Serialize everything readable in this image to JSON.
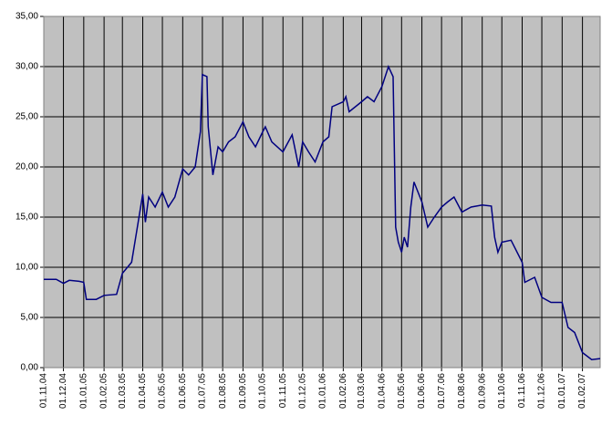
{
  "chart_data": {
    "type": "line",
    "x": [
      "2004-11-01",
      "2004-11-20",
      "2004-12-01",
      "2004-12-10",
      "2004-12-25",
      "2005-01-01",
      "2005-01-05",
      "2005-01-20",
      "2005-02-01",
      "2005-02-20",
      "2005-03-01",
      "2005-03-15",
      "2005-03-25",
      "2005-04-01",
      "2005-04-05",
      "2005-04-10",
      "2005-04-20",
      "2005-05-01",
      "2005-05-10",
      "2005-05-20",
      "2005-06-01",
      "2005-06-10",
      "2005-06-20",
      "2005-06-28",
      "2005-07-01",
      "2005-07-08",
      "2005-07-10",
      "2005-07-17",
      "2005-07-25",
      "2005-08-01",
      "2005-08-10",
      "2005-08-20",
      "2005-09-01",
      "2005-09-10",
      "2005-09-20",
      "2005-10-01",
      "2005-10-05",
      "2005-10-15",
      "2005-11-01",
      "2005-11-15",
      "2005-11-25",
      "2005-12-01",
      "2005-12-10",
      "2005-12-20",
      "2006-01-01",
      "2006-01-10",
      "2006-01-15",
      "2006-02-01",
      "2006-02-05",
      "2006-02-10",
      "2006-03-01",
      "2006-03-10",
      "2006-03-20",
      "2006-04-01",
      "2006-04-11",
      "2006-04-18",
      "2006-04-22",
      "2006-04-26",
      "2006-05-01",
      "2006-05-05",
      "2006-05-10",
      "2006-05-15",
      "2006-05-20",
      "2006-06-01",
      "2006-06-10",
      "2006-06-20",
      "2006-07-01",
      "2006-07-10",
      "2006-07-20",
      "2006-08-01",
      "2006-08-15",
      "2006-09-01",
      "2006-09-15",
      "2006-09-20",
      "2006-09-25",
      "2006-10-01",
      "2006-10-15",
      "2006-11-01",
      "2006-11-05",
      "2006-11-20",
      "2006-12-01",
      "2006-12-15",
      "2007-01-01",
      "2007-01-10",
      "2007-01-20",
      "2007-02-01",
      "2007-02-15",
      "2007-02-28"
    ],
    "series": [
      {
        "color": "#000080",
        "values": [
          8.8,
          8.8,
          8.4,
          8.7,
          8.6,
          8.5,
          6.8,
          6.8,
          7.2,
          7.3,
          9.4,
          10.5,
          14.5,
          17.3,
          14.5,
          17,
          16,
          17.5,
          16,
          17,
          19.8,
          19.2,
          20,
          23.5,
          29.2,
          29,
          24,
          19.2,
          22,
          21.5,
          22.5,
          23,
          24.5,
          23,
          22,
          23.5,
          24,
          22.5,
          21.5,
          23.2,
          20,
          22.5,
          21.5,
          20.5,
          22.5,
          23,
          26,
          26.5,
          27,
          25.5,
          26.5,
          27,
          26.5,
          28,
          30,
          29,
          14,
          12.5,
          11.5,
          13,
          12,
          16,
          18.5,
          16.5,
          14,
          15,
          16,
          16.5,
          17,
          15.5,
          16,
          16.2,
          16.1,
          13,
          11.5,
          12.5,
          12.7,
          10.5,
          8.5,
          9,
          7,
          6.5,
          6.5,
          4,
          3.5,
          1.5,
          0.8,
          0.9
        ]
      }
    ],
    "xlim": [
      "2004-11-01",
      "2007-02-28"
    ],
    "xticks": [
      {
        "value": "2004-11-01",
        "label": "01.11.04"
      },
      {
        "value": "2004-12-01",
        "label": "01.12.04"
      },
      {
        "value": "2005-01-01",
        "label": "01.01.05"
      },
      {
        "value": "2005-02-01",
        "label": "01.02.05"
      },
      {
        "value": "2005-03-01",
        "label": "01.03.05"
      },
      {
        "value": "2005-04-01",
        "label": "01.04.05"
      },
      {
        "value": "2005-05-01",
        "label": "01.05.05"
      },
      {
        "value": "2005-06-01",
        "label": "01.06.05"
      },
      {
        "value": "2005-07-01",
        "label": "01.07.05"
      },
      {
        "value": "2005-08-01",
        "label": "01.08.05"
      },
      {
        "value": "2005-09-01",
        "label": "01.09.05"
      },
      {
        "value": "2005-10-01",
        "label": "01.10.05"
      },
      {
        "value": "2005-11-01",
        "label": "01.11.05"
      },
      {
        "value": "2005-12-01",
        "label": "01.12.05"
      },
      {
        "value": "2006-01-01",
        "label": "01.01.06"
      },
      {
        "value": "2006-02-01",
        "label": "01.02.06"
      },
      {
        "value": "2006-03-01",
        "label": "01.03.06"
      },
      {
        "value": "2006-04-01",
        "label": "01.04.06"
      },
      {
        "value": "2006-05-01",
        "label": "01.05.06"
      },
      {
        "value": "2006-06-01",
        "label": "01.06.06"
      },
      {
        "value": "2006-07-01",
        "label": "01.07.06"
      },
      {
        "value": "2006-08-01",
        "label": "01.08.06"
      },
      {
        "value": "2006-09-01",
        "label": "01.09.06"
      },
      {
        "value": "2006-10-01",
        "label": "01.10.06"
      },
      {
        "value": "2006-11-01",
        "label": "01.11.06"
      },
      {
        "value": "2006-12-01",
        "label": "01.12.06"
      },
      {
        "value": "2007-01-01",
        "label": "01.01.07"
      },
      {
        "value": "2007-02-01",
        "label": "01.02.07"
      }
    ],
    "ylim": [
      0,
      35
    ],
    "yticks": [
      {
        "value": 0,
        "label": "0,00"
      },
      {
        "value": 5,
        "label": "5,00"
      },
      {
        "value": 10,
        "label": "10,00"
      },
      {
        "value": 15,
        "label": "15,00"
      },
      {
        "value": 20,
        "label": "20,00"
      },
      {
        "value": 25,
        "label": "25,00"
      },
      {
        "value": 30,
        "label": "30,00"
      },
      {
        "value": 35,
        "label": "35,00"
      }
    ],
    "grid": true
  }
}
